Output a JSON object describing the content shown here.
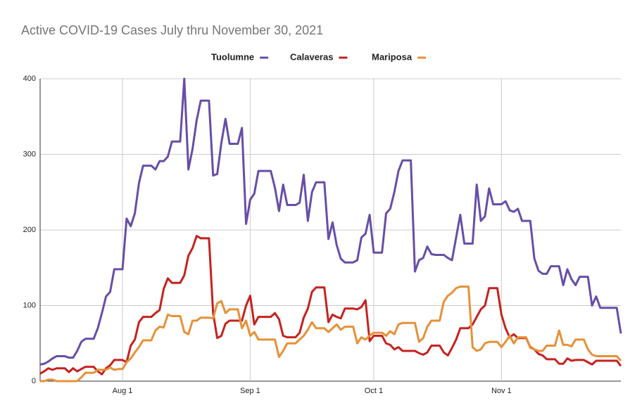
{
  "chart_data": {
    "type": "line",
    "title": "Active COVID-19 Cases July thru November 30, 2021",
    "categories": [
      null,
      null,
      null,
      null,
      null,
      null,
      null,
      null,
      null,
      null,
      null,
      null,
      null,
      null,
      null,
      null,
      null,
      null,
      null,
      null,
      "Aug 1",
      null,
      null,
      null,
      null,
      null,
      null,
      null,
      null,
      null,
      null,
      null,
      null,
      null,
      null,
      null,
      null,
      null,
      null,
      null,
      null,
      null,
      null,
      null,
      null,
      null,
      null,
      null,
      null,
      null,
      null,
      "Sep 1",
      null,
      null,
      null,
      null,
      null,
      null,
      null,
      null,
      null,
      null,
      null,
      null,
      null,
      null,
      null,
      null,
      null,
      null,
      null,
      null,
      null,
      null,
      null,
      null,
      null,
      null,
      null,
      null,
      null,
      "Oct 1",
      null,
      null,
      null,
      null,
      null,
      null,
      null,
      null,
      null,
      null,
      null,
      null,
      null,
      null,
      null,
      null,
      null,
      null,
      null,
      null,
      null,
      null,
      null,
      null,
      null,
      null,
      null,
      null,
      null,
      null,
      "Nov 1",
      null,
      null,
      null,
      null,
      null,
      null,
      null,
      null,
      null,
      null,
      null,
      null,
      null,
      null,
      null,
      null,
      null,
      null,
      null,
      null,
      null,
      null,
      null,
      null,
      null,
      null,
      null,
      null,
      null
    ],
    "series": [
      {
        "name": "Tuolumne",
        "color": "#674ea7",
        "values": [
          22,
          23,
          26,
          30,
          33,
          33,
          33,
          31,
          31,
          40,
          52,
          56,
          56,
          56,
          70,
          90,
          112,
          118,
          148,
          148,
          148,
          215,
          205,
          222,
          262,
          285,
          285,
          285,
          280,
          291,
          291,
          297,
          317,
          317,
          317,
          400,
          280,
          307,
          345,
          371,
          371,
          371,
          272,
          274,
          315,
          347,
          314,
          314,
          314,
          335,
          208,
          240,
          248,
          278,
          278,
          278,
          278,
          256,
          225,
          260,
          233,
          233,
          233,
          236,
          273,
          212,
          250,
          263,
          263,
          263,
          188,
          210,
          180,
          162,
          157,
          157,
          157,
          160,
          190,
          195,
          220,
          170,
          170,
          170,
          222,
          228,
          250,
          278,
          292,
          292,
          292,
          145,
          160,
          163,
          178,
          168,
          167,
          167,
          167,
          163,
          160,
          190,
          220,
          182,
          182,
          182,
          260,
          212,
          218,
          255,
          234,
          234,
          234,
          238,
          226,
          224,
          228,
          212,
          212,
          212,
          162,
          146,
          142,
          142,
          152,
          152,
          152,
          127,
          148,
          135,
          127,
          138,
          138,
          138,
          100,
          112,
          97,
          97,
          97,
          97,
          97,
          63
        ]
      },
      {
        "name": "Calaveras",
        "color": "#c5221f",
        "values": [
          10,
          13,
          17,
          15,
          17,
          17,
          17,
          12,
          17,
          13,
          16,
          19,
          19,
          19,
          13,
          9,
          17,
          21,
          28,
          28,
          28,
          25,
          47,
          55,
          78,
          85,
          85,
          85,
          90,
          94,
          122,
          136,
          130,
          130,
          130,
          140,
          166,
          176,
          192,
          189,
          189,
          189,
          90,
          57,
          60,
          76,
          80,
          80,
          80,
          80,
          100,
          113,
          75,
          85,
          85,
          85,
          85,
          90,
          82,
          60,
          58,
          58,
          58,
          64,
          84,
          96,
          118,
          124,
          124,
          124,
          78,
          88,
          85,
          83,
          96,
          96,
          96,
          95,
          98,
          107,
          53,
          60,
          60,
          60,
          50,
          48,
          42,
          45,
          40,
          40,
          40,
          40,
          37,
          35,
          38,
          47,
          47,
          47,
          38,
          34,
          44,
          55,
          70,
          70,
          70,
          75,
          85,
          95,
          100,
          123,
          123,
          123,
          88,
          70,
          58,
          62,
          57,
          57,
          57,
          45,
          42,
          36,
          34,
          29,
          29,
          29,
          23,
          23,
          30,
          27,
          28,
          28,
          28,
          25,
          22,
          27,
          27,
          27,
          27,
          27,
          27,
          20
        ]
      },
      {
        "name": "Mariposa",
        "color": "#e69138",
        "values": [
          0,
          0,
          2,
          2,
          0,
          0,
          0,
          0,
          0,
          0,
          5,
          11,
          11,
          11,
          15,
          15,
          15,
          18,
          15,
          16,
          16,
          25,
          30,
          38,
          45,
          54,
          54,
          54,
          67,
          72,
          71,
          88,
          86,
          86,
          86,
          65,
          62,
          80,
          80,
          84,
          84,
          84,
          83,
          103,
          106,
          90,
          95,
          95,
          95,
          70,
          80,
          60,
          65,
          55,
          55,
          55,
          55,
          55,
          32,
          40,
          50,
          50,
          50,
          55,
          60,
          68,
          78,
          70,
          70,
          70,
          65,
          70,
          75,
          68,
          72,
          72,
          72,
          50,
          58,
          55,
          60,
          64,
          64,
          64,
          60,
          66,
          62,
          75,
          77,
          77,
          77,
          77,
          52,
          57,
          72,
          80,
          80,
          80,
          105,
          113,
          117,
          123,
          125,
          125,
          125,
          45,
          40,
          42,
          50,
          52,
          52,
          52,
          45,
          52,
          60,
          50,
          58,
          58,
          58,
          44,
          42,
          40,
          40,
          47,
          47,
          47,
          67,
          48,
          48,
          46,
          55,
          55,
          55,
          42,
          35,
          33,
          33,
          33,
          33,
          33,
          33,
          27
        ]
      }
    ],
    "ylim": [
      0,
      400
    ],
    "yticks": [
      0,
      100,
      200,
      300,
      400
    ],
    "grid": true,
    "legend": "top"
  }
}
